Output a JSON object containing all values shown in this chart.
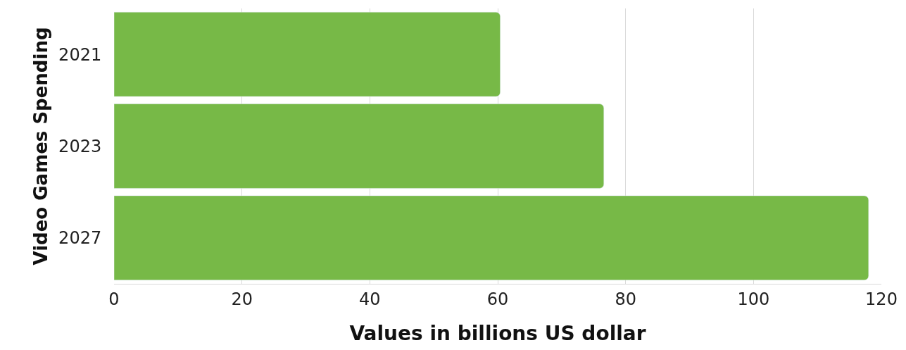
{
  "chart_data": {
    "type": "bar",
    "orientation": "horizontal",
    "categories": [
      "2021",
      "2023",
      "2027"
    ],
    "values": [
      60.4,
      76.6,
      118
    ],
    "color": "#77b947",
    "xlabel": "Values in billions US dollar",
    "ylabel": "Video Games Spending",
    "xlim": [
      0,
      120
    ],
    "xticks": [
      0,
      20,
      40,
      60,
      80,
      100,
      120
    ],
    "grid": "x",
    "legend": false
  }
}
